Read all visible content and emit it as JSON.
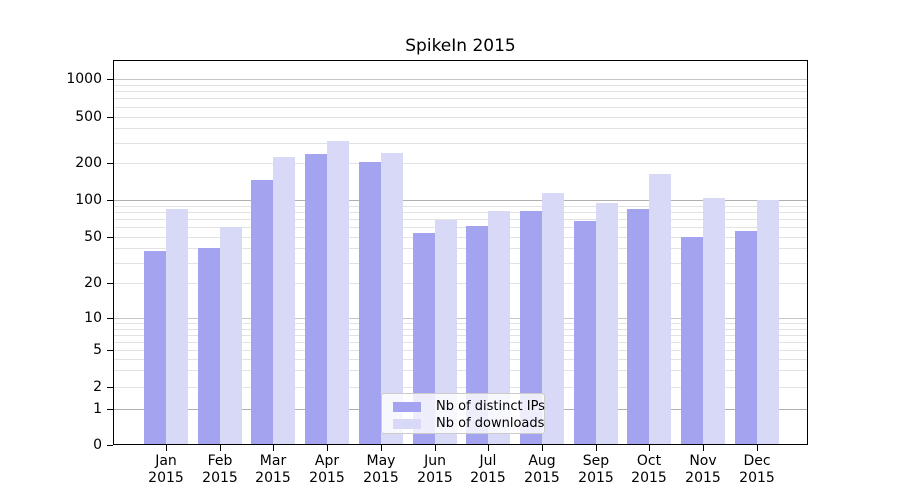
{
  "chart_data": {
    "type": "bar",
    "title": "SpikeIn 2015",
    "categories": [
      "Jan",
      "Feb",
      "Mar",
      "Apr",
      "May",
      "Jun",
      "Jul",
      "Aug",
      "Sep",
      "Oct",
      "Nov",
      "Dec"
    ],
    "x_sublabel_year": "2015",
    "yscale": "symlog",
    "yticks": [
      0,
      1,
      2,
      5,
      10,
      20,
      50,
      100,
      200,
      500,
      1000
    ],
    "ylim": [
      0,
      1200
    ],
    "grid": true,
    "legend_position": "lower center",
    "series": [
      {
        "name": "Nb of distinct IPs",
        "color": "#a3a3f0",
        "values": [
          38,
          40,
          145,
          240,
          207,
          54,
          61,
          81,
          67,
          84,
          50,
          56
        ]
      },
      {
        "name": "Nb of downloads",
        "color": "#d8d8f7",
        "values": [
          85,
          60,
          228,
          310,
          245,
          69,
          82,
          115,
          95,
          163,
          103,
          100
        ]
      }
    ]
  },
  "colors": {
    "background": "#ffffff",
    "bar_distinct_ips": "#a3a3f0",
    "bar_downloads": "#d8d8f7",
    "grid_major": "#b0b0b0",
    "grid_mid": "#c6c6c6",
    "grid_minor": "#e2e2e2",
    "spine": "#000000",
    "legend_border": "#cccccc",
    "text": "#000000"
  }
}
